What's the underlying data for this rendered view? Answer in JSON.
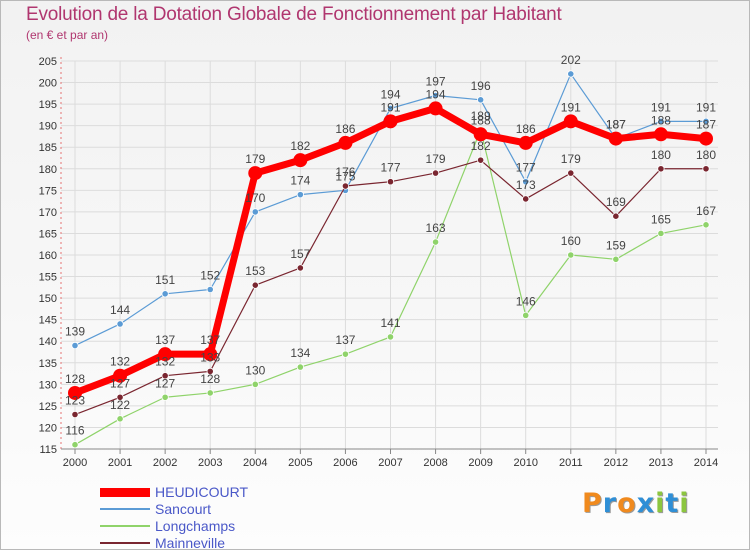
{
  "header": {
    "title": "Evolution de la Dotation Globale de Fonctionnement par Habitant",
    "subtitle": "(en € et par an)"
  },
  "logo": {
    "text": "Proxiti",
    "colors": [
      "#f08a1e",
      "#2f8fd6",
      "#f08a1e",
      "#2f8fd6",
      "#8cc63f",
      "#2f8fd6",
      "#8cc63f"
    ]
  },
  "chart_data": {
    "type": "line",
    "title": "Evolution de la Dotation Globale de Fonctionnement par Habitant",
    "subtitle": "(en € et par an)",
    "xlabel": "",
    "ylabel": "",
    "x": [
      "2000",
      "2001",
      "2002",
      "2003",
      "2004",
      "2005",
      "2006",
      "2007",
      "2008",
      "2009",
      "2010",
      "2011",
      "2012",
      "2013",
      "2014"
    ],
    "ylim": [
      115,
      205
    ],
    "yticks": [
      115,
      120,
      125,
      130,
      135,
      140,
      145,
      150,
      155,
      160,
      165,
      170,
      175,
      180,
      185,
      190,
      195,
      200,
      205
    ],
    "grid": true,
    "legend_position": "bottom-left",
    "series": [
      {
        "name": "HEUDICOURT",
        "color": "#ff0000",
        "values": [
          128,
          132,
          137,
          137,
          179,
          182,
          186,
          191,
          194,
          188,
          186,
          191,
          187,
          188,
          187
        ]
      },
      {
        "name": "Sancourt",
        "color": "#5b9bd5",
        "values": [
          139,
          144,
          151,
          152,
          170,
          174,
          175,
          194,
          197,
          196,
          177,
          202,
          187,
          191,
          191
        ]
      },
      {
        "name": "Longchamps",
        "color": "#8fd36a",
        "values": [
          116,
          122,
          127,
          128,
          130,
          134,
          137,
          141,
          163,
          189,
          146,
          160,
          159,
          165,
          167
        ]
      },
      {
        "name": "Mainneville",
        "color": "#7a2630",
        "values": [
          123,
          127,
          132,
          133,
          153,
          157,
          176,
          177,
          179,
          182,
          173,
          179,
          169,
          180,
          180
        ]
      }
    ]
  }
}
